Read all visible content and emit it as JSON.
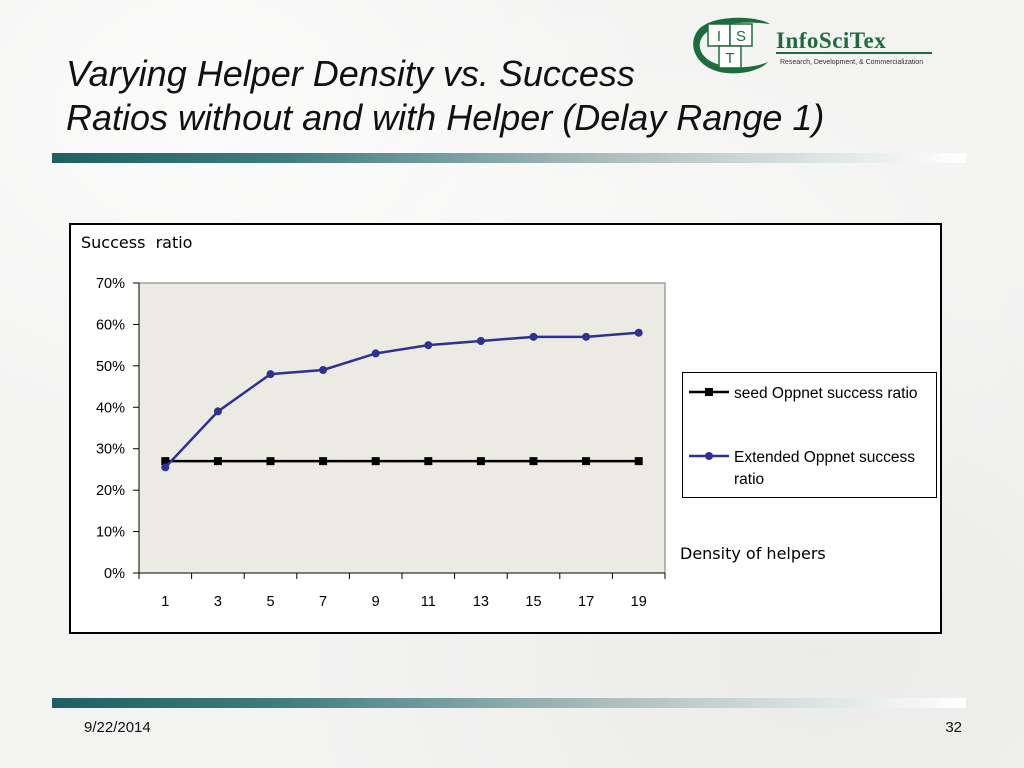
{
  "slide": {
    "title_line1": "Varying Helper Density vs. Success",
    "title_line2": "Ratios without and with Helper (Delay Range 1)",
    "date": "9/22/2014",
    "page_number": "32"
  },
  "logo": {
    "letters": [
      "I",
      "S",
      "T"
    ],
    "name": "InfoSciTex",
    "tagline": "Research, Development, & Commercialization",
    "color": "#1e6b3c"
  },
  "colors": {
    "accent_teal": "#1f5f63",
    "plot_area": "#ecebe3",
    "seed_series": "#000000",
    "extended_series": "#2e3192"
  },
  "chart_data": {
    "type": "line",
    "ylabel": "Success  ratio",
    "xlabel": "Density of helpers",
    "categories": [
      "1",
      "3",
      "5",
      "7",
      "9",
      "11",
      "13",
      "15",
      "17",
      "19"
    ],
    "ylim": [
      0,
      0.7
    ],
    "yticks": [
      0,
      0.1,
      0.2,
      0.3,
      0.4,
      0.5,
      0.6,
      0.7
    ],
    "ytick_labels": [
      "0%",
      "10%",
      "20%",
      "30%",
      "40%",
      "50%",
      "60%",
      "70%"
    ],
    "grid": false,
    "legend_position": "right",
    "series": [
      {
        "name": "seed Oppnet success ratio",
        "values": [
          0.27,
          0.27,
          0.27,
          0.27,
          0.27,
          0.27,
          0.27,
          0.27,
          0.27,
          0.27
        ],
        "color": "#000000",
        "marker": "square"
      },
      {
        "name": "Extended Oppnet success ratio",
        "values": [
          0.255,
          0.39,
          0.48,
          0.49,
          0.53,
          0.55,
          0.56,
          0.57,
          0.57,
          0.58
        ],
        "color": "#2e3192",
        "marker": "circle"
      }
    ]
  }
}
